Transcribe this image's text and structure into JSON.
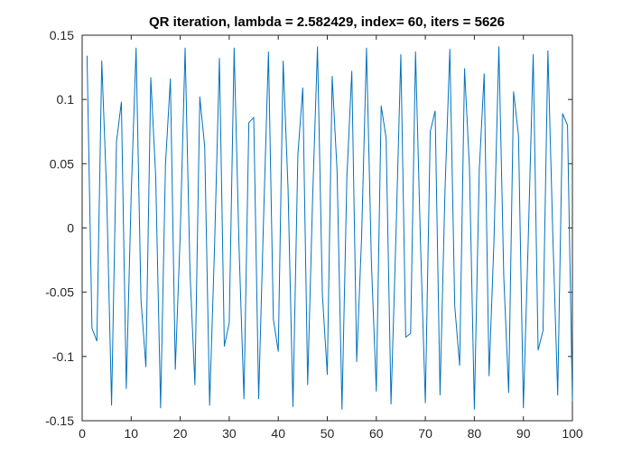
{
  "chart_data": {
    "type": "line",
    "title": "QR iteration, lambda = 2.582429, index= 60, iters = 5626",
    "xlabel": "",
    "ylabel": "",
    "xlim": [
      0,
      100
    ],
    "ylim": [
      -0.15,
      0.15
    ],
    "grid": false,
    "xticks": [
      "0",
      "10",
      "20",
      "30",
      "40",
      "50",
      "60",
      "70",
      "80",
      "90",
      "100"
    ],
    "yticks": [
      "0.15",
      "0.1",
      "0.05",
      "0",
      "-0.05",
      "-0.1",
      "-0.15"
    ],
    "line_color": "#0072BD",
    "series": [
      {
        "x": [
          1,
          2,
          3,
          4,
          5,
          6,
          7,
          8,
          9,
          10,
          11,
          12,
          13,
          14,
          15,
          16,
          17,
          18,
          19,
          20,
          21,
          22,
          23,
          24,
          25,
          26,
          27,
          28,
          29,
          30,
          31,
          32,
          33,
          34,
          35,
          36,
          37,
          38,
          39,
          40,
          41,
          42,
          43,
          44,
          45,
          46,
          47,
          48,
          49,
          50,
          51,
          52,
          53,
          54,
          55,
          56,
          57,
          58,
          59,
          60,
          61,
          62,
          63,
          64,
          65,
          66,
          67,
          68,
          69,
          70,
          71,
          72,
          73,
          74,
          75,
          76,
          77,
          78,
          79,
          80,
          81,
          82,
          83,
          84,
          85,
          86,
          87,
          88,
          89,
          90,
          91,
          92,
          93,
          94,
          95,
          96,
          97,
          98,
          99,
          100
        ],
        "values": [
          0.134,
          -0.078,
          -0.088,
          0.13,
          0.027,
          -0.138,
          0.067,
          0.098,
          -0.125,
          0.026,
          0.14,
          -0.056,
          -0.108,
          0.117,
          0.04,
          -0.14,
          0.05,
          0.116,
          -0.11,
          -0.005,
          0.14,
          -0.035,
          -0.122,
          0.102,
          0.063,
          -0.138,
          -0.015,
          0.132,
          -0.092,
          -0.074,
          0.14,
          -0.015,
          -0.133,
          0.082,
          0.086,
          -0.133,
          0.007,
          0.137,
          -0.071,
          -0.096,
          0.13,
          0.03,
          -0.139,
          0.057,
          0.109,
          -0.122,
          0.022,
          0.141,
          -0.052,
          -0.114,
          0.118,
          0.044,
          -0.141,
          0.04,
          0.122,
          -0.104,
          -0.007,
          0.14,
          -0.027,
          -0.127,
          0.095,
          0.07,
          -0.137,
          -0.007,
          0.135,
          -0.085,
          -0.082,
          0.137,
          -0.01,
          -0.136,
          0.075,
          0.091,
          -0.13,
          0.028,
          0.139,
          -0.061,
          -0.107,
          0.124,
          0.047,
          -0.141,
          0.045,
          0.12,
          -0.115,
          -0.01,
          0.141,
          -0.038,
          -0.128,
          0.106,
          0.072,
          -0.14,
          -0.008,
          0.135,
          -0.095,
          -0.08,
          0.138,
          -0.005,
          -0.13,
          0.089,
          0.08,
          -0.135
        ]
      }
    ]
  }
}
